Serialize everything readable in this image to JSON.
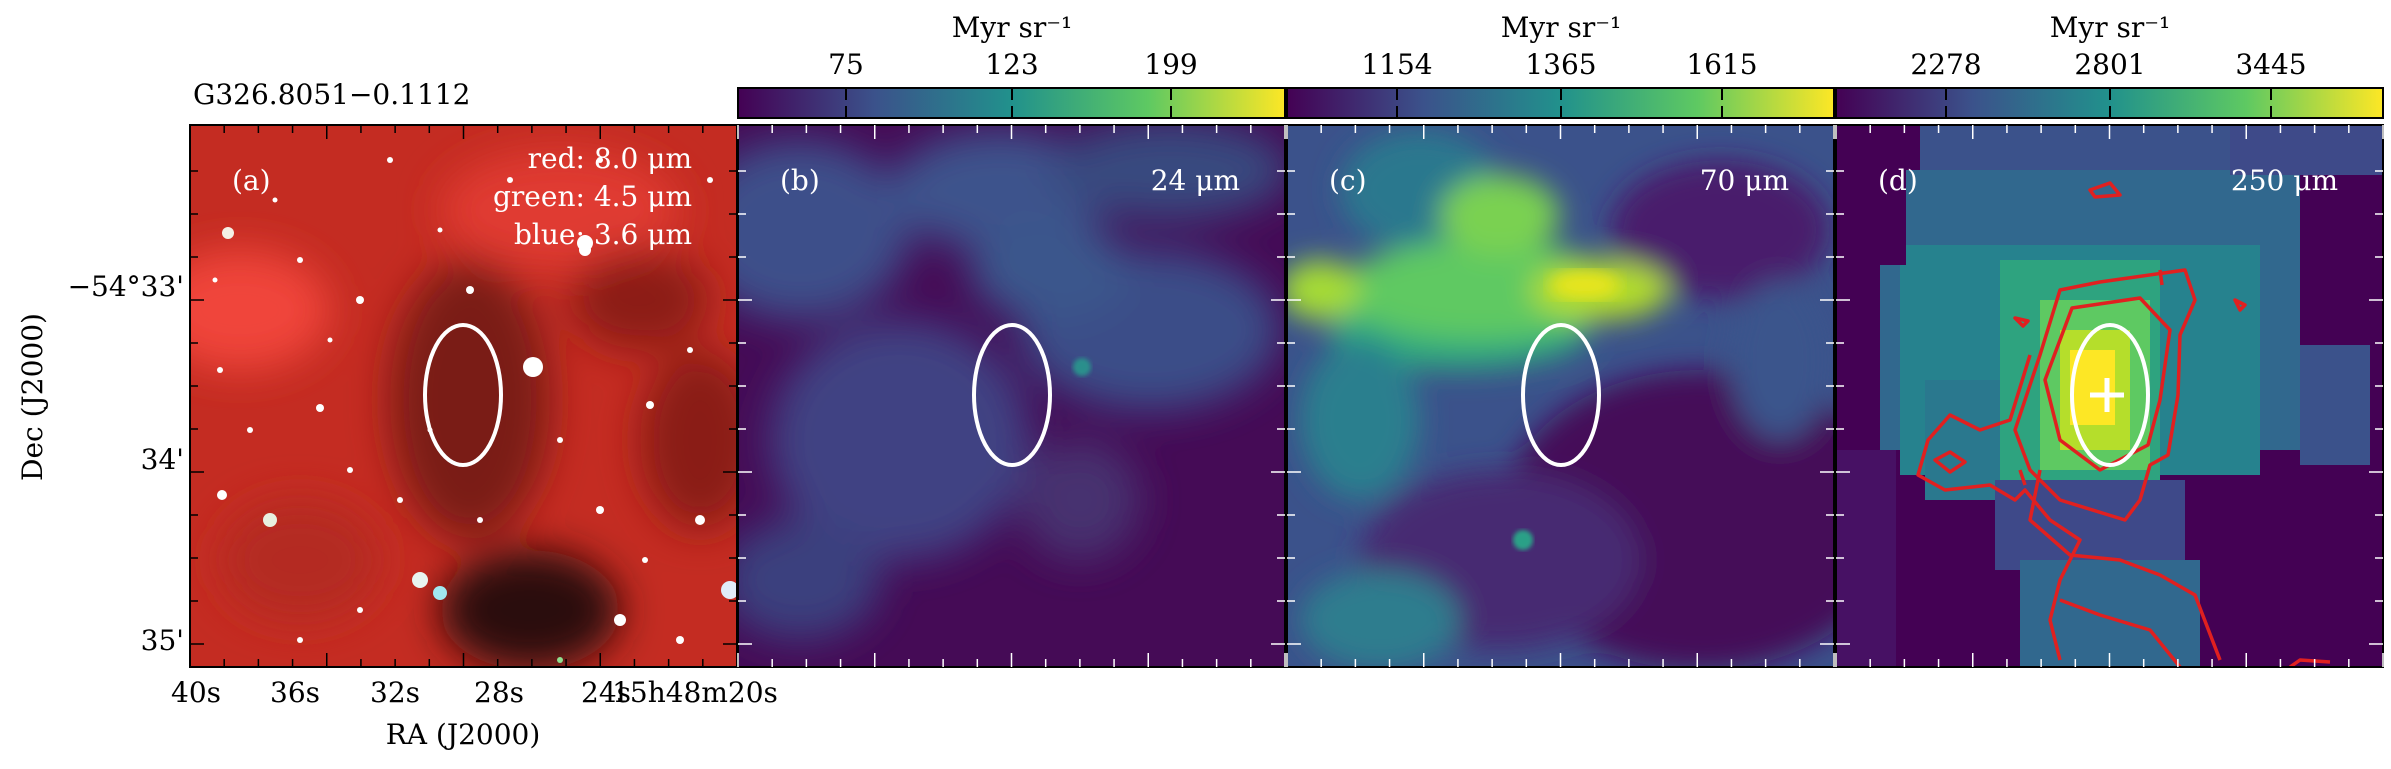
{
  "figure": {
    "source_name": "G326.8051−0.1112",
    "y_axis_label": "Dec (J2000)",
    "x_axis_label": "RA (J2000)",
    "y_ticks": [
      "−54°33'",
      "34'",
      "35'"
    ],
    "x_ticks": [
      "40s",
      "36s",
      "32s",
      "28s",
      "24s",
      "15h48m20s"
    ]
  },
  "panels": [
    {
      "id": "a",
      "label": "(a)",
      "legend": [
        "red: 8.0 μm",
        "green: 4.5 μm",
        "blue: 3.6 μm"
      ],
      "colors": {
        "red": "#d8342a",
        "green": "#7fbf6a",
        "blue": "#8fb8e8"
      }
    },
    {
      "id": "b",
      "label": "(b)",
      "wavelength": "24 μm",
      "colorbar": {
        "unit": "Myr sr⁻¹",
        "ticks": [
          "75",
          "123",
          "199"
        ],
        "colormap": "viridis"
      }
    },
    {
      "id": "c",
      "label": "(c)",
      "wavelength": "70 μm",
      "colorbar": {
        "unit": "Myr sr⁻¹",
        "ticks": [
          "1154",
          "1365",
          "1615"
        ],
        "colormap": "viridis"
      }
    },
    {
      "id": "d",
      "label": "(d)",
      "wavelength": "250 μm",
      "colorbar": {
        "unit": "Myr sr⁻¹",
        "ticks": [
          "2278",
          "2801",
          "3445"
        ],
        "colormap": "viridis"
      },
      "contour_color": "#e02020",
      "marker": "cross"
    }
  ],
  "ellipse_color": "#ffffff"
}
